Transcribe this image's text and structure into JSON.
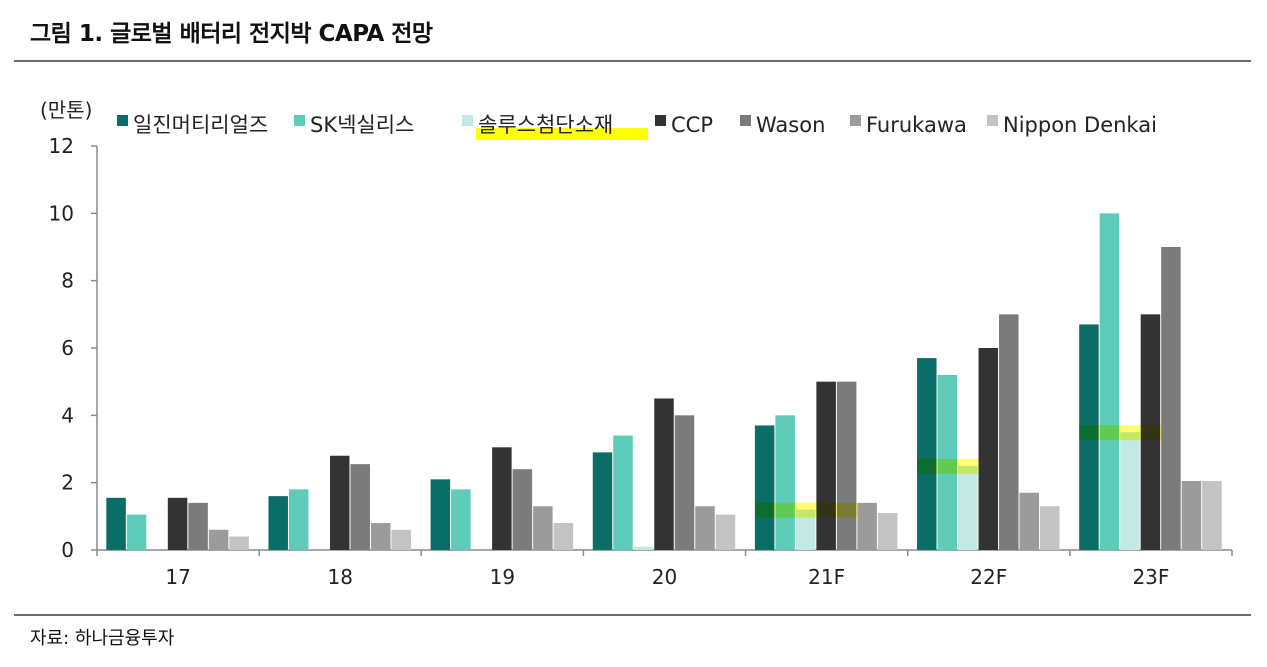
{
  "header": {
    "title": "그림 1. 글로벌 배터리 전지박 CAPA 전망"
  },
  "footer": {
    "source": "자료: 하나금융투자"
  },
  "colors": {
    "highlight_yellow": "#ffff00",
    "highlight_green": "#77dd00"
  },
  "chart_data": {
    "type": "bar",
    "unit_label": "(만톤)",
    "categories": [
      "17",
      "18",
      "19",
      "20",
      "21F",
      "22F",
      "23F"
    ],
    "ylim": [
      0,
      12
    ],
    "yticks": [
      0,
      2,
      4,
      6,
      8,
      10,
      12
    ],
    "grid": false,
    "legend_position": "top",
    "series": [
      {
        "name": "일진머티리얼즈",
        "color": "#0b6e66",
        "values": [
          1.55,
          1.6,
          2.1,
          2.9,
          3.7,
          5.7,
          6.7
        ]
      },
      {
        "name": "SK넥실리스",
        "color": "#5fcbb9",
        "values": [
          1.05,
          1.8,
          1.8,
          3.4,
          4.0,
          5.2,
          10.0
        ]
      },
      {
        "name": "솔루스첨단소재",
        "color": "#c4e8e3",
        "values": [
          0,
          0,
          0,
          0.1,
          1.2,
          2.5,
          3.5
        ]
      },
      {
        "name": "CCP",
        "color": "#333333",
        "values": [
          1.55,
          2.8,
          3.05,
          4.5,
          5.0,
          6.0,
          7.0
        ]
      },
      {
        "name": "Wason",
        "color": "#7b7b7b",
        "values": [
          1.4,
          2.55,
          2.4,
          4.0,
          5.0,
          7.0,
          9.0
        ]
      },
      {
        "name": "Furukawa",
        "color": "#9b9b9b",
        "values": [
          0.6,
          0.8,
          1.3,
          1.3,
          1.4,
          1.7,
          2.05
        ]
      },
      {
        "name": "Nippon Denkai",
        "color": "#c3c3c3",
        "values": [
          0.4,
          0.6,
          0.8,
          1.05,
          1.1,
          1.3,
          2.05
        ]
      }
    ],
    "annotations": [
      {
        "type": "highlight",
        "target": "legend",
        "series": "솔루스첨단소재"
      },
      {
        "type": "highlight",
        "target": "series-level",
        "series": "솔루스첨단소재",
        "category": "21F"
      },
      {
        "type": "highlight",
        "target": "series-level",
        "series": "솔루스첨단소재",
        "category": "22F"
      },
      {
        "type": "highlight",
        "target": "series-level",
        "series": "솔루스첨단소재",
        "category": "23F"
      }
    ]
  }
}
